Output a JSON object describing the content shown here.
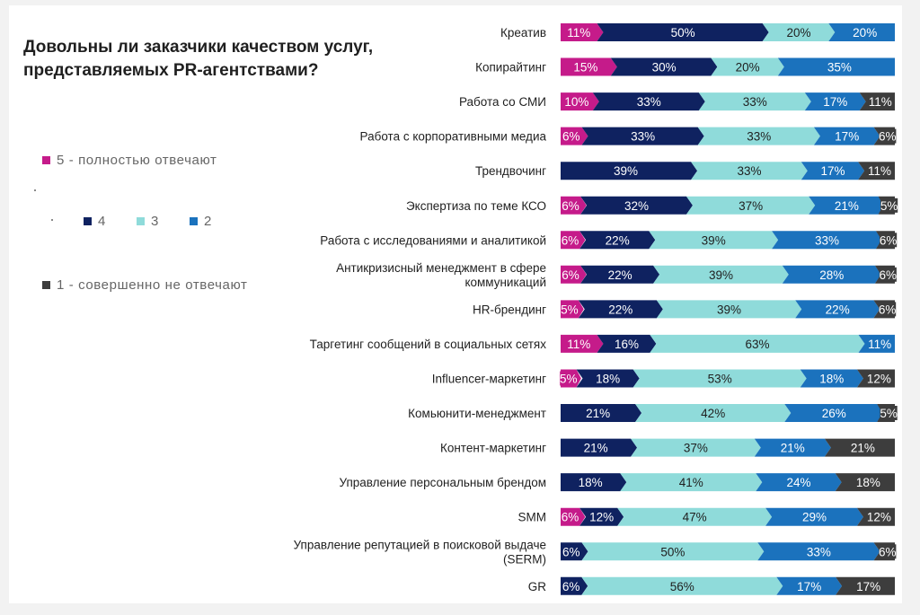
{
  "chart_data": {
    "type": "bar",
    "orientation": "horizontal",
    "stacked": true,
    "title": "Довольны ли заказчики качеством услуг, представляемых PR-агентствами?",
    "legend_position": "left",
    "categories": [
      "Креатив",
      "Копирайтинг",
      "Работа со СМИ",
      "Работа с корпоративными медиа",
      "Трендвочинг",
      "Экспертиза по теме КСО",
      "Работа с исследованиями и аналитикой",
      "Антикризисный менеджмент в сфере коммуникаций",
      "HR-брендинг",
      "Таргетинг сообщений в социальных сетях",
      "Influencer-маркетинг",
      "Комьюнити-менеджмент",
      "Контент-маркетинг",
      "Управление персональным брендом",
      "SMM",
      "Управление репутацией в поисковой выдаче (SERM)",
      "GR"
    ],
    "category_lines": [
      [
        "Креатив"
      ],
      [
        "Копирайтинг"
      ],
      [
        "Работа со СМИ"
      ],
      [
        "Работа с корпоративными медиа"
      ],
      [
        "Трендвочинг"
      ],
      [
        "Экспертиза по теме КСО"
      ],
      [
        "Работа с исследованиями и аналитикой"
      ],
      [
        "Антикризисный менеджмент в сфере",
        "коммуникаций"
      ],
      [
        "HR-брендинг"
      ],
      [
        "Таргетинг сообщений в социальных сетях"
      ],
      [
        "Influencer-маркетинг"
      ],
      [
        "Комьюнити-менеджмент"
      ],
      [
        "Контент-маркетинг"
      ],
      [
        "Управление персональным брендом"
      ],
      [
        "SMM"
      ],
      [
        "Управление репутацией в поисковой выдаче",
        "(SERM)"
      ],
      [
        "GR"
      ]
    ],
    "series": [
      {
        "name": "5 - полностью отвечают",
        "color": "#c51b8a",
        "values": [
          11,
          15,
          10,
          6,
          0,
          6,
          6,
          6,
          5,
          11,
          5,
          0,
          0,
          0,
          6,
          0,
          0
        ]
      },
      {
        "name": "4",
        "color": "#0f2260",
        "values": [
          50,
          30,
          33,
          33,
          39,
          32,
          22,
          22,
          22,
          16,
          18,
          21,
          21,
          18,
          12,
          6,
          6
        ]
      },
      {
        "name": "3",
        "color": "#8fdbda",
        "values": [
          20,
          20,
          33,
          33,
          33,
          37,
          39,
          39,
          39,
          63,
          53,
          42,
          37,
          41,
          47,
          50,
          56
        ]
      },
      {
        "name": "2",
        "color": "#1b72bd",
        "values": [
          20,
          35,
          17,
          17,
          17,
          21,
          33,
          28,
          22,
          11,
          18,
          26,
          21,
          24,
          29,
          33,
          17
        ]
      },
      {
        "name": "1 - совершенно не отвечают",
        "color": "#3d3d3d",
        "values": [
          0,
          0,
          11,
          6,
          11,
          5,
          6,
          6,
          6,
          0,
          12,
          5,
          21,
          18,
          12,
          6,
          17
        ]
      }
    ],
    "value_suffix": "%"
  },
  "legend": {
    "s5": "5 - полностью отвечают",
    "s4": "4",
    "s3": "3",
    "s2": "2",
    "s1": "1 - совершенно не отвечают"
  }
}
